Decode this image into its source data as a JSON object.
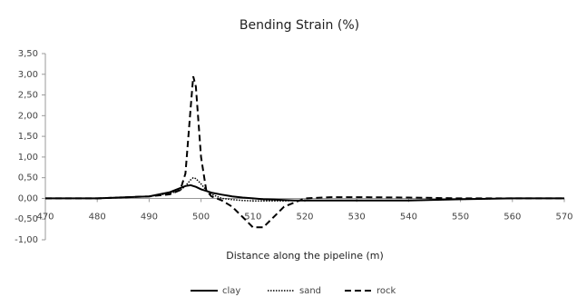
{
  "chart_data": {
    "type": "line",
    "title": "Bending Strain (%)",
    "x_label": "Distance along the pipeline (m)",
    "x": [
      470,
      480,
      490,
      494,
      496,
      497,
      498,
      498.5,
      499,
      500,
      501,
      502,
      504,
      506,
      508,
      510,
      512,
      514,
      516,
      518,
      520,
      525,
      530,
      540,
      550,
      560,
      570
    ],
    "series": [
      {
        "name": "clay",
        "color": "#000000",
        "style": "solid",
        "values": [
          0,
          0,
          0.05,
          0.15,
          0.25,
          0.3,
          0.32,
          0.3,
          0.28,
          0.22,
          0.18,
          0.14,
          0.09,
          0.05,
          0.02,
          0,
          -0.02,
          -0.03,
          -0.04,
          -0.05,
          -0.05,
          -0.05,
          -0.05,
          -0.05,
          -0.02,
          0,
          0
        ]
      },
      {
        "name": "sand",
        "color": "#000000",
        "style": "dotted",
        "values": [
          0,
          0,
          0.05,
          0.12,
          0.2,
          0.3,
          0.45,
          0.5,
          0.48,
          0.35,
          0.2,
          0.1,
          0,
          -0.03,
          -0.05,
          -0.06,
          -0.06,
          -0.06,
          -0.06,
          -0.05,
          -0.05,
          -0.05,
          -0.05,
          -0.05,
          -0.02,
          0,
          0
        ]
      },
      {
        "name": "rock",
        "color": "#000000",
        "style": "dashed",
        "values": [
          0,
          0,
          0.05,
          0.1,
          0.2,
          0.6,
          2.2,
          2.95,
          2.7,
          1.0,
          0.2,
          0.05,
          -0.05,
          -0.2,
          -0.45,
          -0.7,
          -0.7,
          -0.45,
          -0.2,
          -0.1,
          0,
          0.03,
          0.03,
          0.02,
          0,
          0,
          0
        ]
      }
    ],
    "xlim": [
      470,
      570
    ],
    "xticks": [
      470,
      480,
      490,
      500,
      510,
      520,
      530,
      540,
      550,
      560,
      570
    ],
    "ylim": [
      -1,
      3.5
    ],
    "yticks": [
      {
        "value": -1,
        "label": "-1,00"
      },
      {
        "value": -0.5,
        "label": "-0,50"
      },
      {
        "value": 0,
        "label": "0,00"
      },
      {
        "value": 0.5,
        "label": "0,50"
      },
      {
        "value": 1,
        "label": "1,00"
      },
      {
        "value": 1.5,
        "label": "1,50"
      },
      {
        "value": 2,
        "label": "2,00"
      },
      {
        "value": 2.5,
        "label": "2,50"
      },
      {
        "value": 3,
        "label": "3,00"
      },
      {
        "value": 3.5,
        "label": "3,50"
      }
    ],
    "grid": false,
    "legend": "bottom"
  }
}
